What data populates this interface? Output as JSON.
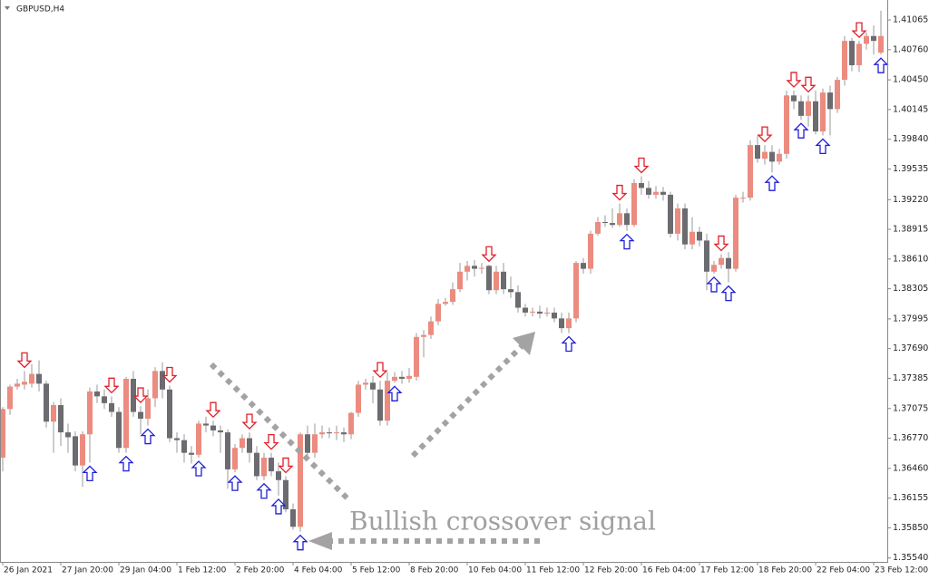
{
  "chart_data": {
    "type": "candlestick",
    "title": "GBPUSD,H4",
    "annotation": "Bullish crossover signal",
    "bull_color": "#ec8b7f",
    "bear_color": "#6b6b70",
    "up_signal_color": "#1f1fd6",
    "down_signal_color": "#e0202a",
    "open": [
      1.3657,
      1.3707,
      1.373,
      1.3732,
      1.3733,
      1.3743,
      1.3733,
      1.3694,
      1.3711,
      1.3683,
      1.3679,
      1.3649,
      1.3681,
      1.3725,
      1.372,
      1.3713,
      1.3704,
      1.3667,
      1.3738,
      1.3704,
      1.3697,
      1.3718,
      1.3746,
      1.3727,
      1.3677,
      1.3675,
      1.3662,
      1.366,
      1.3692,
      1.369,
      1.3685,
      1.3683,
      1.3645,
      1.3667,
      1.3677,
      1.3662,
      1.3638,
      1.3657,
      1.3643,
      1.3634,
      1.3604,
      1.3586,
      1.3681,
      1.3662,
      1.3681,
      1.3683,
      1.3682,
      1.3683,
      1.3681,
      1.3703,
      1.3732,
      1.3734,
      1.3727,
      1.3695,
      1.3736,
      1.374,
      1.3738,
      1.374,
      1.3781,
      1.3783,
      1.3797,
      1.3815,
      1.3817,
      1.383,
      1.3848,
      1.3854,
      1.3851,
      1.3854,
      1.3829,
      1.3848,
      1.383,
      1.3827,
      1.3811,
      1.3806,
      1.3807,
      1.3805,
      1.3806,
      1.38,
      1.379,
      1.38,
      1.3857,
      1.3851,
      1.3887,
      1.3899,
      1.3898,
      1.3896,
      1.3908,
      1.3896,
      1.3939,
      1.3934,
      1.3927,
      1.393,
      1.3927,
      1.3887,
      1.3913,
      1.3876,
      1.3889,
      1.388,
      1.3848,
      1.3855,
      1.3862,
      1.3851,
      1.3924,
      1.3924,
      1.3978,
      1.3964,
      1.3971,
      1.3961,
      1.3969,
      1.4029,
      1.4023,
      1.4008,
      1.4023,
      1.3992,
      1.4032,
      1.4015,
      1.4045,
      1.4085,
      1.406,
      1.4082,
      1.409,
      1.4073
    ],
    "high": [
      1.3709,
      1.3732,
      1.3738,
      1.3746,
      1.3753,
      1.3757,
      1.3736,
      1.3714,
      1.3718,
      1.3692,
      1.3684,
      1.3684,
      1.3729,
      1.3732,
      1.3727,
      1.372,
      1.3709,
      1.374,
      1.3746,
      1.371,
      1.3727,
      1.375,
      1.3755,
      1.3731,
      1.3683,
      1.3681,
      1.3669,
      1.3695,
      1.3699,
      1.3695,
      1.369,
      1.3686,
      1.3671,
      1.3681,
      1.3683,
      1.3669,
      1.3662,
      1.3662,
      1.3652,
      1.3638,
      1.361,
      1.3683,
      1.369,
      1.3692,
      1.369,
      1.3688,
      1.369,
      1.3688,
      1.3704,
      1.3736,
      1.3738,
      1.3741,
      1.3736,
      1.3745,
      1.3745,
      1.3746,
      1.3749,
      1.3785,
      1.3788,
      1.3802,
      1.382,
      1.3821,
      1.3837,
      1.3857,
      1.3859,
      1.386,
      1.3857,
      1.3855,
      1.3854,
      1.3857,
      1.3843,
      1.3834,
      1.3815,
      1.3811,
      1.3813,
      1.3811,
      1.3811,
      1.3806,
      1.3806,
      1.3859,
      1.3862,
      1.389,
      1.3904,
      1.3906,
      1.3913,
      1.3918,
      1.3913,
      1.3943,
      1.3946,
      1.3941,
      1.3936,
      1.3935,
      1.393,
      1.3918,
      1.3918,
      1.3904,
      1.3894,
      1.3887,
      1.3859,
      1.3866,
      1.3868,
      1.3927,
      1.393,
      1.3983,
      1.3988,
      1.3978,
      1.3978,
      1.3974,
      1.4034,
      1.4034,
      1.4029,
      1.4029,
      1.4034,
      1.4036,
      1.4039,
      1.4048,
      1.409,
      1.4088,
      1.4085,
      1.4094,
      1.4101,
      1.4116
    ],
    "low": [
      1.3643,
      1.3701,
      1.3727,
      1.3727,
      1.3729,
      1.3725,
      1.3688,
      1.3662,
      1.3669,
      1.3662,
      1.3643,
      1.3627,
      1.3652,
      1.3713,
      1.3707,
      1.3699,
      1.3662,
      1.3662,
      1.3699,
      1.3681,
      1.369,
      1.3709,
      1.3718,
      1.3673,
      1.3662,
      1.3652,
      1.3651,
      1.3657,
      1.3683,
      1.3679,
      1.3662,
      1.3625,
      1.3642,
      1.3662,
      1.3652,
      1.3634,
      1.3634,
      1.3638,
      1.3618,
      1.3601,
      1.3583,
      1.3581,
      1.3657,
      1.3657,
      1.3677,
      1.3677,
      1.3675,
      1.3673,
      1.3676,
      1.3699,
      1.3727,
      1.3713,
      1.369,
      1.369,
      1.3734,
      1.3733,
      1.3734,
      1.3736,
      1.376,
      1.3779,
      1.3793,
      1.3813,
      1.3814,
      1.3827,
      1.3839,
      1.3843,
      1.3846,
      1.3825,
      1.3825,
      1.3825,
      1.3821,
      1.3806,
      1.3802,
      1.3802,
      1.38,
      1.3802,
      1.3796,
      1.3785,
      1.3785,
      1.3796,
      1.3846,
      1.3846,
      1.3885,
      1.3894,
      1.3893,
      1.3894,
      1.389,
      1.3894,
      1.3927,
      1.3923,
      1.3923,
      1.3921,
      1.3883,
      1.388,
      1.3871,
      1.3871,
      1.3874,
      1.3829,
      1.3846,
      1.3851,
      1.3837,
      1.3848,
      1.3919,
      1.3921,
      1.396,
      1.3958,
      1.395,
      1.3958,
      1.3964,
      1.4015,
      1.4004,
      1.3997,
      1.3989,
      1.3988,
      1.3988,
      1.4011,
      1.4039,
      1.4054,
      1.4053,
      1.4076,
      1.4071,
      1.4071
    ],
    "close": [
      1.3707,
      1.373,
      1.3733,
      1.3735,
      1.3743,
      1.3733,
      1.3694,
      1.3711,
      1.3683,
      1.3678,
      1.3649,
      1.3681,
      1.3725,
      1.372,
      1.3713,
      1.3704,
      1.3667,
      1.3738,
      1.3704,
      1.3697,
      1.3718,
      1.3746,
      1.3727,
      1.3677,
      1.3675,
      1.3662,
      1.366,
      1.3692,
      1.369,
      1.3685,
      1.3683,
      1.3645,
      1.3667,
      1.3677,
      1.3662,
      1.3638,
      1.3657,
      1.3643,
      1.3634,
      1.3604,
      1.3586,
      1.3681,
      1.3662,
      1.3681,
      1.3683,
      1.3682,
      1.3683,
      1.3681,
      1.3703,
      1.3732,
      1.3734,
      1.3727,
      1.3695,
      1.3736,
      1.374,
      1.3738,
      1.3741,
      1.3781,
      1.3783,
      1.3797,
      1.3815,
      1.3817,
      1.383,
      1.3848,
      1.3854,
      1.3851,
      1.3852,
      1.3829,
      1.3848,
      1.383,
      1.3827,
      1.3811,
      1.3806,
      1.3807,
      1.3805,
      1.3806,
      1.38,
      1.379,
      1.38,
      1.3857,
      1.3851,
      1.3887,
      1.3899,
      1.3898,
      1.3896,
      1.3908,
      1.3896,
      1.3939,
      1.3934,
      1.3927,
      1.393,
      1.3927,
      1.3887,
      1.3913,
      1.3876,
      1.3889,
      1.388,
      1.3848,
      1.3855,
      1.3862,
      1.3851,
      1.3924,
      1.3924,
      1.3978,
      1.3964,
      1.3971,
      1.3961,
      1.3969,
      1.4029,
      1.4023,
      1.4008,
      1.4023,
      1.3992,
      1.4032,
      1.4015,
      1.4045,
      1.4085,
      1.406,
      1.4082,
      1.409,
      1.4085,
      1.409
    ],
    "up_signals": [
      12,
      17,
      20,
      27,
      32,
      36,
      38,
      41,
      54,
      78,
      86,
      98,
      100,
      106,
      110,
      113,
      121
    ],
    "down_signals": [
      3,
      15,
      19,
      23,
      29,
      34,
      37,
      39,
      52,
      67,
      85,
      88,
      99,
      105,
      109,
      111,
      118
    ],
    "ylim": [
      1.355,
      1.4127
    ],
    "yticks": [
      1.41065,
      {
        "value": 1.4076,
        "label": "1.40760"
      },
      {
        "value": 1.4045,
        "label": "1.40450"
      },
      1.40145,
      {
        "value": 1.3984,
        "label": "1.39840"
      },
      1.39535,
      {
        "value": 1.3922,
        "label": "1.39220"
      },
      1.38915,
      {
        "value": 1.3861,
        "label": "1.38610"
      },
      1.38305,
      1.37995,
      {
        "value": 1.3769,
        "label": "1.37690"
      },
      1.37385,
      1.37075,
      {
        "value": 1.3677,
        "label": "1.36770"
      },
      {
        "value": 1.3646,
        "label": "1.36460"
      },
      1.36155,
      {
        "value": 1.3585,
        "label": "1.35850"
      },
      {
        "value": 1.3554,
        "label": "1.35540"
      }
    ],
    "xticks": [
      {
        "value": 0,
        "label": "26 Jan 2021"
      },
      {
        "value": 8,
        "label": "27 Jan 20:00"
      },
      {
        "value": 16,
        "label": "29 Jan 04:00"
      },
      {
        "value": 24,
        "label": "1 Feb 12:00"
      },
      {
        "value": 32,
        "label": "2 Feb 20:00"
      },
      {
        "value": 40,
        "label": "4 Feb 04:00"
      },
      {
        "value": 48,
        "label": "5 Feb 12:00"
      },
      {
        "value": 56,
        "label": "8 Feb 20:00"
      },
      {
        "value": 64,
        "label": "10 Feb 04:00"
      },
      {
        "value": 72,
        "label": "11 Feb 12:00"
      },
      {
        "value": 80,
        "label": "12 Feb 20:00"
      },
      {
        "value": 88,
        "label": "16 Feb 04:00"
      },
      {
        "value": 96,
        "label": "17 Feb 12:00"
      },
      {
        "value": 104,
        "label": "18 Feb 20:00"
      },
      {
        "value": 112,
        "label": "22 Feb 04:00"
      },
      {
        "value": 120,
        "label": "23 Feb 12:00"
      }
    ]
  }
}
